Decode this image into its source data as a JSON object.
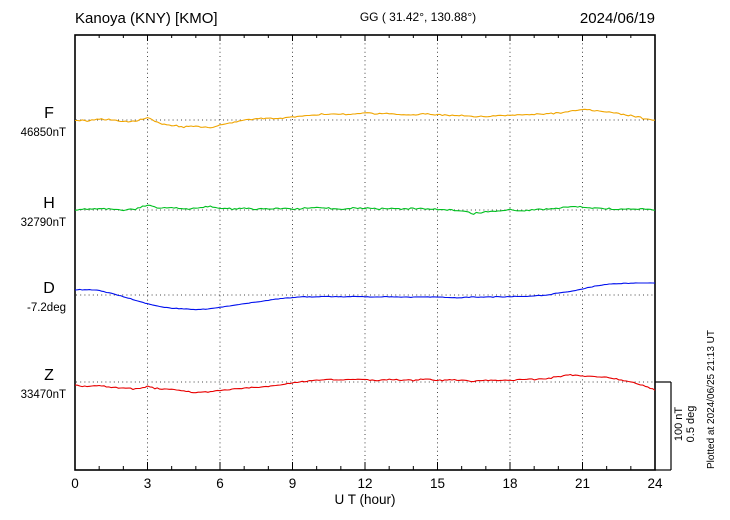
{
  "header": {
    "station": "Kanoya (KNY)  [KMO]",
    "coords": "GG ( 31.42°, 130.88°)",
    "date": "2024/06/19"
  },
  "xaxis": {
    "label": "U T (hour)",
    "min": 0,
    "max": 24,
    "major_ticks": [
      0,
      3,
      6,
      9,
      12,
      15,
      18,
      21,
      24
    ],
    "minor_step": 1
  },
  "scale_bar": {
    "label_nt": "100 nT",
    "label_deg": "0.5 deg",
    "nT": 100,
    "deg": 0.5
  },
  "footer_note": "Plotted at 2024/06/25 21:13 UT",
  "chart_data": {
    "type": "line",
    "title": "Kanoya (KNY) [KMO] magnetogram 2024/06/19",
    "xlabel": "U T (hour)",
    "x_start": 0,
    "x_step": 0.5,
    "x_unit": "hour",
    "xlim": [
      0,
      24
    ],
    "grid": {
      "vertical_every_hours": 3,
      "style": "dotted"
    },
    "scale": {
      "nT_per_bar": 100,
      "deg_per_bar": 0.5
    },
    "series": [
      {
        "name": "F",
        "unit": "nT",
        "baseline_label": "46850nT",
        "color": "#f0a500",
        "noise": 1.0,
        "seed": 11,
        "values": [
          0,
          -1,
          1,
          0,
          -2,
          -1,
          3,
          -4,
          -6,
          -8,
          -7,
          -9,
          -6,
          -3,
          0,
          1,
          2,
          2,
          3,
          5,
          6,
          7,
          6,
          7,
          8,
          7,
          8,
          6,
          6,
          7,
          6,
          5,
          5,
          4,
          4,
          5,
          5,
          6,
          6,
          7,
          8,
          10,
          12,
          11,
          9,
          7,
          5,
          2,
          0
        ]
      },
      {
        "name": "H",
        "unit": "nT",
        "baseline_label": "32790nT",
        "color": "#00c020",
        "noise": 1.1,
        "seed": 22,
        "values": [
          0,
          1,
          2,
          1,
          0,
          1,
          6,
          2,
          3,
          1,
          2,
          4,
          2,
          1,
          2,
          1,
          1,
          2,
          1,
          2,
          3,
          2,
          1,
          2,
          2,
          1,
          2,
          1,
          2,
          1,
          1,
          0,
          -1,
          -4,
          -2,
          -1,
          0,
          -1,
          0,
          1,
          2,
          4,
          3,
          2,
          2,
          1,
          1,
          1,
          0
        ]
      },
      {
        "name": "D",
        "unit": "deg",
        "baseline_label": "-7.2deg",
        "color": "#0010ee",
        "noise": 0.0025,
        "seed": 33,
        "values": [
          0.03,
          0.03,
          0.025,
          0.01,
          -0.01,
          -0.03,
          -0.05,
          -0.065,
          -0.075,
          -0.08,
          -0.082,
          -0.08,
          -0.07,
          -0.06,
          -0.05,
          -0.04,
          -0.03,
          -0.02,
          -0.015,
          -0.01,
          -0.01,
          -0.008,
          -0.01,
          -0.008,
          -0.01,
          -0.012,
          -0.01,
          -0.012,
          -0.012,
          -0.01,
          -0.012,
          -0.015,
          -0.015,
          -0.012,
          -0.012,
          -0.01,
          -0.01,
          -0.008,
          -0.005,
          0.0,
          0.01,
          0.02,
          0.035,
          0.05,
          0.06,
          0.065,
          0.067,
          0.068,
          0.068
        ]
      },
      {
        "name": "Z",
        "unit": "nT",
        "baseline_label": "33470nT",
        "color": "#e80000",
        "noise": 0.9,
        "seed": 44,
        "values": [
          -4,
          -5,
          -4,
          -6,
          -7,
          -8,
          -5,
          -8,
          -8,
          -10,
          -12,
          -11,
          -10,
          -8,
          -7,
          -6,
          -5,
          -3,
          -1,
          1,
          2,
          3,
          2,
          3,
          3,
          2,
          3,
          2,
          2,
          3,
          2,
          2,
          2,
          1,
          2,
          2,
          2,
          3,
          3,
          4,
          6,
          8,
          7,
          6,
          5,
          3,
          0,
          -4,
          -9
        ]
      }
    ]
  }
}
